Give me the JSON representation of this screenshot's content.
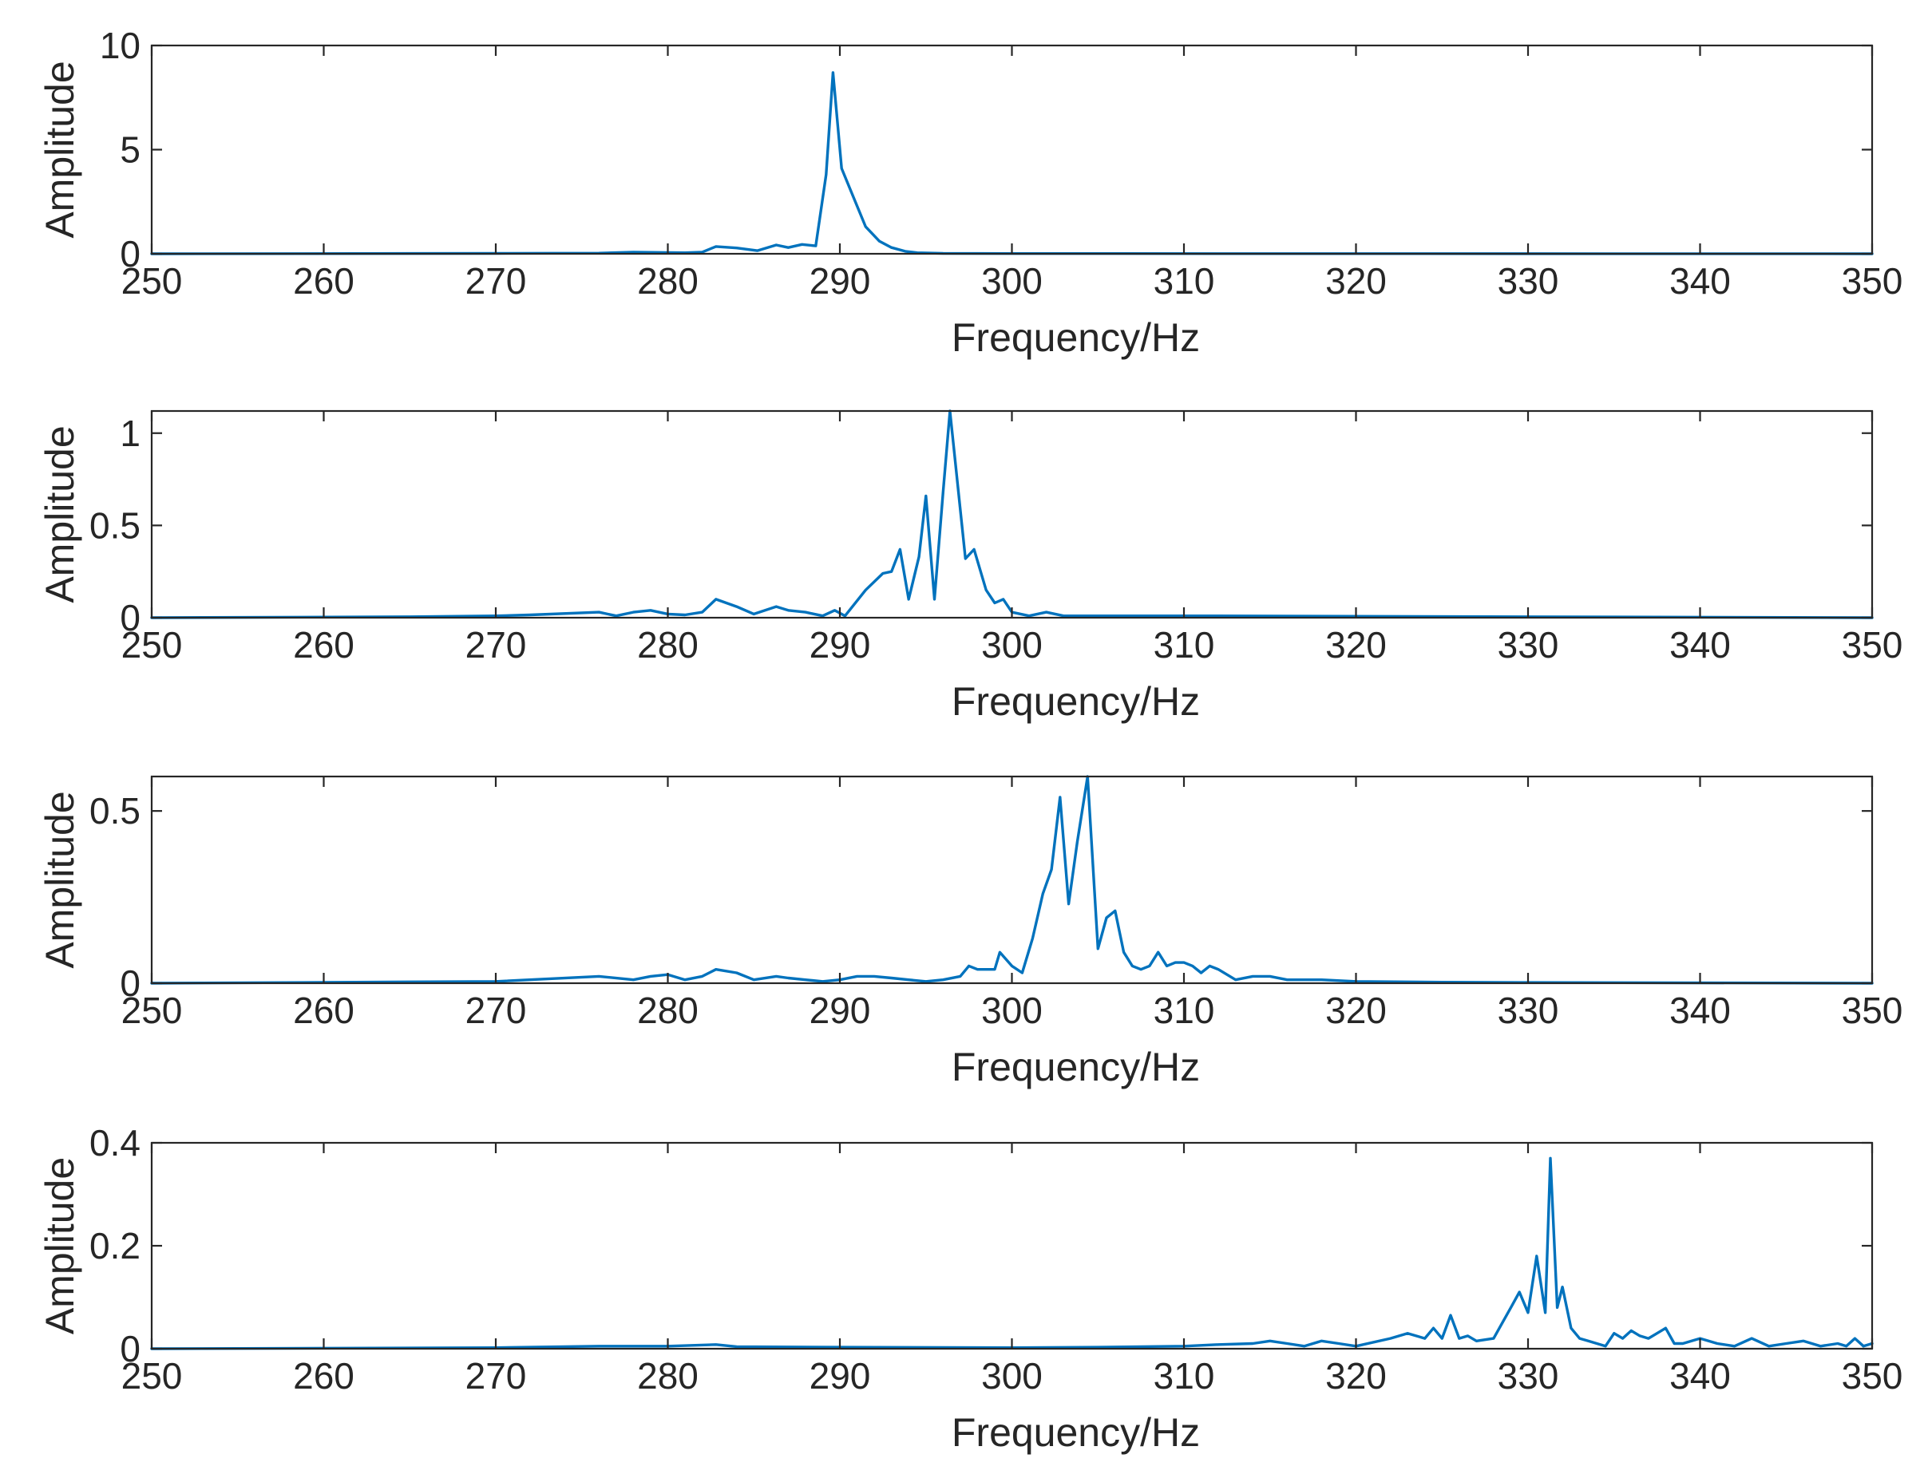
{
  "chart_data": [
    {
      "type": "line",
      "xlabel": "Frequency/Hz",
      "ylabel": "Amplitude",
      "xlim": [
        250,
        350
      ],
      "ylim": [
        0,
        10
      ],
      "xticks": [
        250,
        260,
        270,
        280,
        290,
        300,
        310,
        320,
        330,
        340,
        350
      ],
      "yticks": [
        0,
        5,
        10
      ],
      "ytick_labels": [
        "0",
        "5",
        "10"
      ],
      "grid": false,
      "color": "#0072BD",
      "x": [
        250,
        270,
        276,
        278,
        281,
        282,
        282.8,
        284,
        285.2,
        286.3,
        287,
        287.8,
        288.6,
        289.2,
        289.6,
        290.1,
        290.8,
        291.5,
        292.3,
        293,
        293.8,
        294.5,
        296,
        300,
        350
      ],
      "y": [
        0,
        0.02,
        0.03,
        0.08,
        0.05,
        0.08,
        0.35,
        0.28,
        0.15,
        0.42,
        0.3,
        0.45,
        0.38,
        3.8,
        8.7,
        4.1,
        2.7,
        1.3,
        0.6,
        0.3,
        0.12,
        0.05,
        0.02,
        0.01,
        0
      ]
    },
    {
      "type": "line",
      "xlabel": "Frequency/Hz",
      "ylabel": "Amplitude",
      "xlim": [
        250,
        350
      ],
      "ylim": [
        0,
        1.12
      ],
      "xticks": [
        250,
        260,
        270,
        280,
        290,
        300,
        310,
        320,
        330,
        340,
        350
      ],
      "yticks": [
        0,
        0.5,
        1
      ],
      "ytick_labels": [
        "0",
        "0.5",
        "1"
      ],
      "grid": false,
      "color": "#0072BD",
      "x": [
        250,
        265,
        270,
        272,
        276,
        277,
        278,
        279,
        280,
        281,
        282,
        282.8,
        284,
        285,
        286.3,
        287,
        288,
        289,
        289.7,
        290.3,
        291.5,
        292.5,
        293,
        293.5,
        294,
        294.6,
        295,
        295.5,
        296,
        296.4,
        297.3,
        297.8,
        298.5,
        299,
        299.5,
        300,
        301,
        302,
        303,
        305,
        310,
        312,
        350
      ],
      "y": [
        0,
        0.005,
        0.01,
        0.015,
        0.03,
        0.01,
        0.03,
        0.04,
        0.02,
        0.015,
        0.03,
        0.1,
        0.06,
        0.02,
        0.06,
        0.04,
        0.03,
        0.01,
        0.04,
        0.01,
        0.15,
        0.24,
        0.25,
        0.37,
        0.1,
        0.33,
        0.66,
        0.1,
        0.68,
        1.12,
        0.32,
        0.37,
        0.15,
        0.08,
        0.1,
        0.03,
        0.01,
        0.03,
        0.01,
        0.01,
        0.01,
        0.01,
        0
      ]
    },
    {
      "type": "line",
      "xlabel": "Frequency/Hz",
      "ylabel": "Amplitude",
      "xlim": [
        250,
        350
      ],
      "ylim": [
        0,
        0.6
      ],
      "xticks": [
        250,
        260,
        270,
        280,
        290,
        300,
        310,
        320,
        330,
        340,
        350
      ],
      "yticks": [
        0,
        0.5
      ],
      "ytick_labels": [
        "0",
        "0.5"
      ],
      "grid": false,
      "color": "#0072BD",
      "x": [
        250,
        270,
        276,
        278,
        279,
        280,
        281,
        282,
        282.8,
        284,
        285,
        286.3,
        287,
        288,
        289,
        290,
        291,
        292,
        293,
        294,
        295,
        296,
        297,
        297.5,
        298,
        299,
        299.3,
        300,
        300.6,
        301.2,
        301.8,
        302.3,
        302.8,
        303.3,
        303.8,
        304.4,
        305,
        305.5,
        306,
        306.5,
        307,
        307.5,
        308,
        308.5,
        309,
        309.5,
        310,
        310.5,
        311,
        311.5,
        312,
        313,
        314,
        315,
        316,
        317,
        318,
        320,
        325,
        330,
        350
      ],
      "y": [
        0,
        0.005,
        0.02,
        0.01,
        0.02,
        0.025,
        0.01,
        0.02,
        0.04,
        0.03,
        0.01,
        0.02,
        0.015,
        0.01,
        0.005,
        0.01,
        0.02,
        0.02,
        0.015,
        0.01,
        0.005,
        0.01,
        0.02,
        0.05,
        0.04,
        0.04,
        0.09,
        0.05,
        0.03,
        0.13,
        0.26,
        0.33,
        0.54,
        0.23,
        0.41,
        0.6,
        0.1,
        0.19,
        0.21,
        0.09,
        0.05,
        0.04,
        0.05,
        0.09,
        0.05,
        0.06,
        0.06,
        0.05,
        0.03,
        0.05,
        0.04,
        0.01,
        0.02,
        0.02,
        0.01,
        0.01,
        0.01,
        0.005,
        0.003,
        0.002,
        0
      ]
    },
    {
      "type": "line",
      "xlabel": "Frequency/Hz",
      "ylabel": "Amplitude",
      "xlim": [
        250,
        350
      ],
      "ylim": [
        0,
        0.4
      ],
      "xticks": [
        250,
        260,
        270,
        280,
        290,
        300,
        310,
        320,
        330,
        340,
        350
      ],
      "yticks": [
        0,
        0.2,
        0.4
      ],
      "ytick_labels": [
        "0",
        "0.2",
        "0.4"
      ],
      "grid": false,
      "color": "#0072BD",
      "x": [
        250,
        270,
        276,
        280,
        282.8,
        284,
        290,
        300,
        305,
        310,
        312,
        314,
        315,
        316,
        317,
        318,
        319,
        320,
        322,
        323,
        324,
        324.5,
        325,
        325.5,
        326,
        326.5,
        327,
        328,
        329,
        329.5,
        330,
        330.5,
        331,
        331.3,
        331.7,
        332,
        332.5,
        333,
        333.5,
        334.5,
        335,
        335.5,
        336,
        336.5,
        337,
        337.5,
        338,
        338.5,
        339,
        340,
        341,
        342,
        343,
        344,
        345,
        346,
        347,
        348,
        348.5,
        349,
        349.5,
        350
      ],
      "y": [
        0,
        0.002,
        0.005,
        0.005,
        0.008,
        0.004,
        0.003,
        0.002,
        0.003,
        0.005,
        0.008,
        0.01,
        0.015,
        0.01,
        0.005,
        0.015,
        0.01,
        0.005,
        0.02,
        0.03,
        0.02,
        0.04,
        0.02,
        0.065,
        0.02,
        0.025,
        0.015,
        0.02,
        0.08,
        0.11,
        0.07,
        0.18,
        0.07,
        0.37,
        0.08,
        0.12,
        0.04,
        0.02,
        0.015,
        0.005,
        0.03,
        0.02,
        0.035,
        0.025,
        0.02,
        0.03,
        0.04,
        0.01,
        0.01,
        0.02,
        0.01,
        0.005,
        0.02,
        0.005,
        0.01,
        0.015,
        0.005,
        0.01,
        0.005,
        0.02,
        0.005,
        0.01
      ]
    }
  ]
}
